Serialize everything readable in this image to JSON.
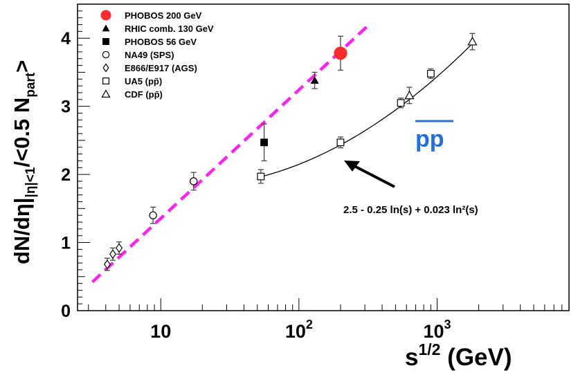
{
  "chart_data": {
    "type": "scatter",
    "x_scale": "log",
    "xlim": [
      2.5,
      9000
    ],
    "ylim": [
      0,
      4.5
    ],
    "ylabel": "dN/dη|_|η|<1/<0.5 N_part>",
    "xlabel": "s^1/2 (GeV)",
    "y_ticks": [
      "0",
      "1",
      "2",
      "3",
      "4"
    ],
    "x_ticks": [
      {
        "value": 10,
        "base": "10",
        "exp": ""
      },
      {
        "value": 100,
        "base": "10",
        "exp": "2"
      },
      {
        "value": 1000,
        "base": "10",
        "exp": "3"
      }
    ],
    "series": [
      {
        "name": "PHOBOS 200 GeV",
        "marker": "filled-circle",
        "color": "#ff2a2a",
        "points": [
          {
            "x": 200,
            "y": 3.78,
            "err": 0.25
          }
        ]
      },
      {
        "name": "RHIC comb. 130 GeV",
        "marker": "filled-triangle",
        "color": "#000000",
        "points": [
          {
            "x": 130,
            "y": 3.38,
            "err": 0.12
          }
        ]
      },
      {
        "name": "PHOBOS 56 GeV",
        "marker": "filled-square",
        "color": "#000000",
        "points": [
          {
            "x": 56,
            "y": 2.47,
            "err": 0.27
          }
        ]
      },
      {
        "name": "NA49 (SPS)",
        "marker": "open-circle",
        "color": "#000000",
        "points": [
          {
            "x": 8.8,
            "y": 1.4,
            "err": 0.12
          },
          {
            "x": 17.3,
            "y": 1.9,
            "err": 0.13
          }
        ]
      },
      {
        "name": "E866/E917 (AGS)",
        "marker": "open-diamond",
        "color": "#000000",
        "points": [
          {
            "x": 4.1,
            "y": 0.68,
            "err": 0.09
          },
          {
            "x": 4.5,
            "y": 0.83,
            "err": 0.09
          },
          {
            "x": 5.0,
            "y": 0.92,
            "err": 0.09
          }
        ]
      },
      {
        "name": "UA5 (pp̄)",
        "marker": "open-square",
        "color": "#000000",
        "points": [
          {
            "x": 53,
            "y": 1.97,
            "err": 0.1
          },
          {
            "x": 200,
            "y": 2.47,
            "err": 0.08
          },
          {
            "x": 546,
            "y": 3.05,
            "err": 0.07
          },
          {
            "x": 900,
            "y": 3.48,
            "err": 0.07
          }
        ]
      },
      {
        "name": "CDF (pp̄)",
        "marker": "open-triangle",
        "color": "#000000",
        "points": [
          {
            "x": 630,
            "y": 3.16,
            "err": 0.12
          },
          {
            "x": 1800,
            "y": 3.95,
            "err": 0.12
          }
        ]
      }
    ],
    "fit_curve": {
      "formula_label": "2.5 - 0.25 ln(s) + 0.023 ln²(s)",
      "a": 2.5,
      "b": -0.25,
      "c": 0.023,
      "x_range": [
        53,
        1800
      ],
      "color": "#000000"
    },
    "dashed_line": {
      "color": "#ff22ee",
      "x_range": [
        3.2,
        330
      ],
      "y_range": [
        0.42,
        4.22
      ]
    },
    "annotations": {
      "pp_label": {
        "main": "pp",
        "color": "#1e6fe0"
      },
      "formula_label": "2.5 - 0.25 ln(s) + 0.023 ln²(s)"
    },
    "legend": {
      "position": "top-left"
    },
    "grid": false
  }
}
